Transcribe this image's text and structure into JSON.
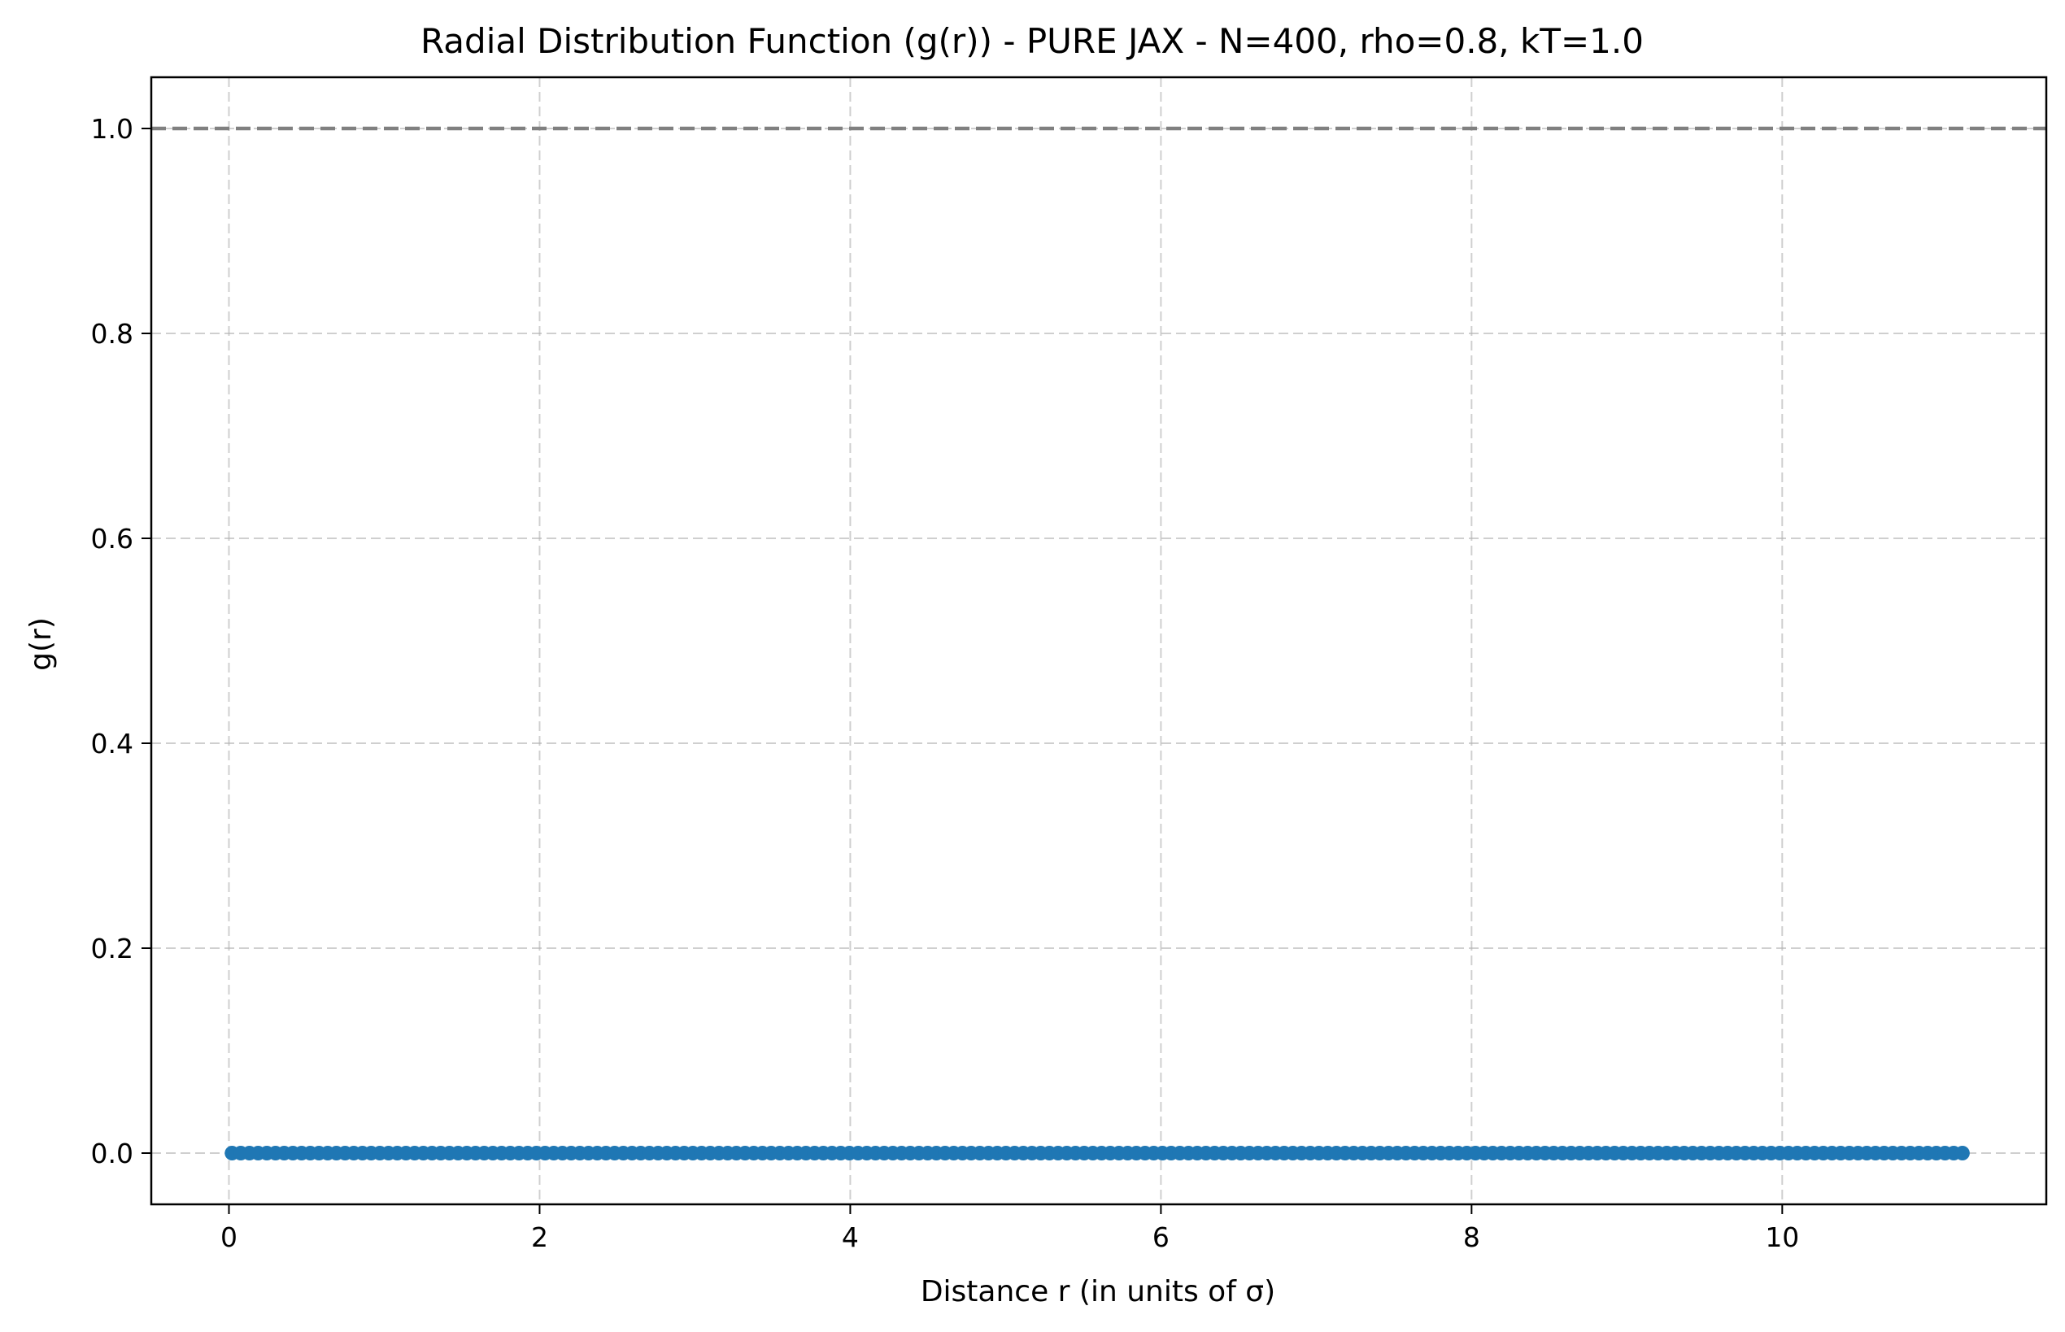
{
  "chart_data": {
    "type": "line",
    "title": "Radial Distribution Function (g(r)) - PURE JAX - N=400, rho=0.8, kT=1.0",
    "xlabel": "Distance r (in units of σ)",
    "ylabel": "g(r)",
    "xlim": [
      -0.5,
      11.7
    ],
    "ylim": [
      -0.05,
      1.05
    ],
    "xticks": [
      0,
      2,
      4,
      6,
      8,
      10
    ],
    "yticks": [
      0.0,
      0.2,
      0.4,
      0.6,
      0.8,
      1.0
    ],
    "xtick_labels": [
      "0",
      "2",
      "4",
      "6",
      "8",
      "10"
    ],
    "ytick_labels": [
      "0.0",
      "0.2",
      "0.4",
      "0.6",
      "0.8",
      "1.0"
    ],
    "grid": true,
    "reference_line": {
      "y": 1.0,
      "color": "#808080",
      "style": "dashed"
    },
    "series": [
      {
        "color": "#1f77b4",
        "marker": "circle",
        "x_start": 0.02,
        "x_end": 11.16,
        "points": 200,
        "y": 0.0
      }
    ]
  }
}
